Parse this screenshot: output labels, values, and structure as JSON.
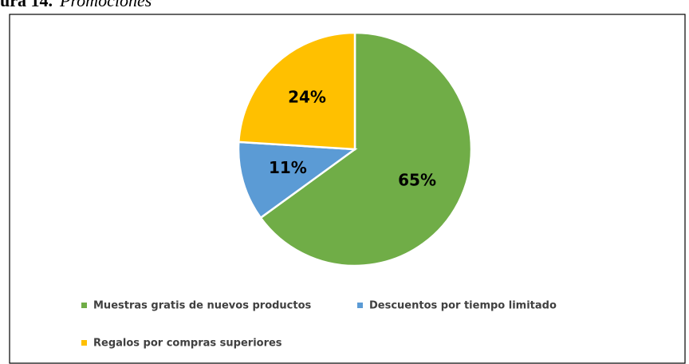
{
  "chart_data": {
    "type": "pie",
    "caption_number": "ura 14.",
    "caption": "Promociones",
    "categories": [
      "Muestras gratis de nuevos productos",
      "Descuentos por tiempo limitado",
      "Regalos por compras superiores"
    ],
    "values": [
      65,
      11,
      24
    ],
    "value_labels": [
      "65%",
      "11%",
      "24%"
    ],
    "colors": [
      "#70ad47",
      "#5b9bd5",
      "#ffc000"
    ],
    "legend": "bottom"
  }
}
